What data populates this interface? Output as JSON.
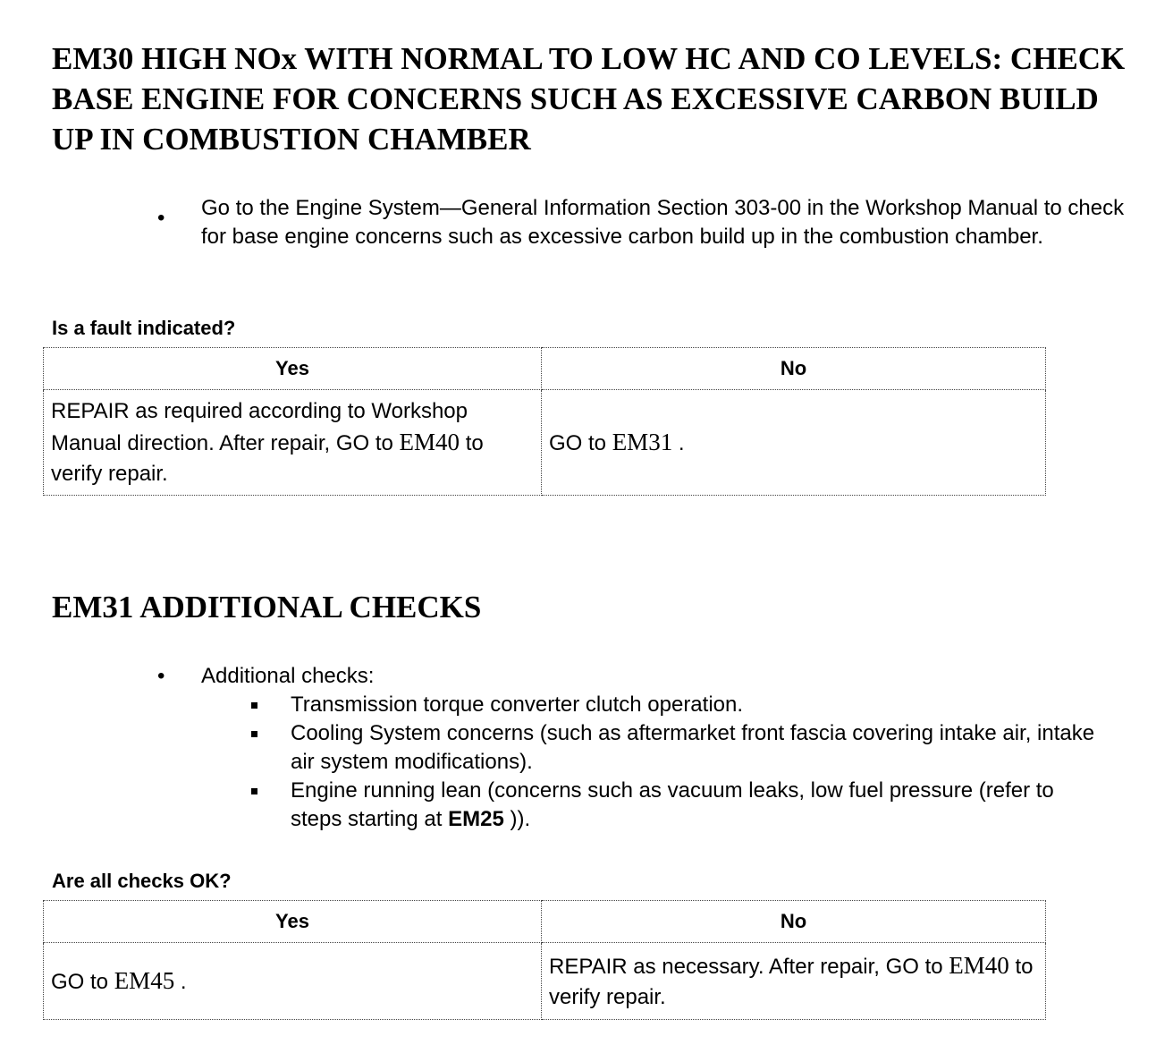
{
  "em30": {
    "title": "EM30 HIGH NOx WITH NORMAL TO LOW HC AND CO LEVELS: CHECK BASE ENGINE FOR CONCERNS SUCH AS EXCESSIVE CARBON BUILD UP IN COMBUSTION CHAMBER",
    "bullet": "Go to the Engine System—General Information Section 303-00 in the Workshop Manual to check for base engine concerns such as excessive carbon build up in the combustion chamber.",
    "question": "Is a fault indicated?",
    "yes_header": "Yes",
    "no_header": "No",
    "yes_text1": "REPAIR as required according to Workshop Manual direction. After repair, GO to ",
    "yes_ref": "EM40",
    "yes_text2": " to verify repair.",
    "no_text1": "GO to ",
    "no_ref": "EM31",
    "no_text2": " ."
  },
  "em31": {
    "title": "EM31 ADDITIONAL CHECKS",
    "bullet": "Additional checks:",
    "sub": [
      "Transmission torque converter clutch operation.",
      "Cooling System concerns (such as aftermarket front fascia covering intake air, intake air system modifications).",
      "Engine running lean (concerns such as vacuum leaks, low fuel pressure (refer to steps starting at "
    ],
    "sub3_ref": "EM25",
    "sub3_end": " )).",
    "question": "Are all checks OK?",
    "yes_header": "Yes",
    "no_header": "No",
    "yes_text1": "GO to ",
    "yes_ref": "EM45",
    "yes_text2": " .",
    "no_text1": "REPAIR as necessary. After repair, GO to ",
    "no_ref": "EM40",
    "no_text2": " to verify repair."
  }
}
